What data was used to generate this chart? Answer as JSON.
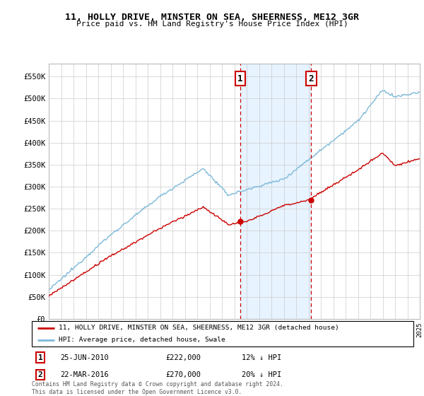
{
  "title": "11, HOLLY DRIVE, MINSTER ON SEA, SHEERNESS, ME12 3GR",
  "subtitle": "Price paid vs. HM Land Registry's House Price Index (HPI)",
  "x_start_year": 1995,
  "x_end_year": 2025,
  "y_min": 0,
  "y_max": 580000,
  "y_ticks": [
    0,
    50000,
    100000,
    150000,
    200000,
    250000,
    300000,
    350000,
    400000,
    450000,
    500000,
    550000
  ],
  "transaction1": {
    "date": "25-JUN-2010",
    "price": 222000,
    "label": "1",
    "x": 2010.49
  },
  "transaction2": {
    "date": "22-MAR-2016",
    "price": 270000,
    "label": "2",
    "x": 2016.22
  },
  "legend_house": "11, HOLLY DRIVE, MINSTER ON SEA, SHEERNESS, ME12 3GR (detached house)",
  "legend_hpi": "HPI: Average price, detached house, Swale",
  "footer": "Contains HM Land Registry data © Crown copyright and database right 2024.\nThis data is licensed under the Open Government Licence v3.0.",
  "hpi_color": "#7db9d9",
  "sale_color": "#cc0000",
  "shade_color": "#ddeeff",
  "box1_price_label": "£222,000",
  "box2_price_label": "£270,000",
  "box1_hpi_label": "12% ↓ HPI",
  "box2_hpi_label": "20% ↓ HPI"
}
